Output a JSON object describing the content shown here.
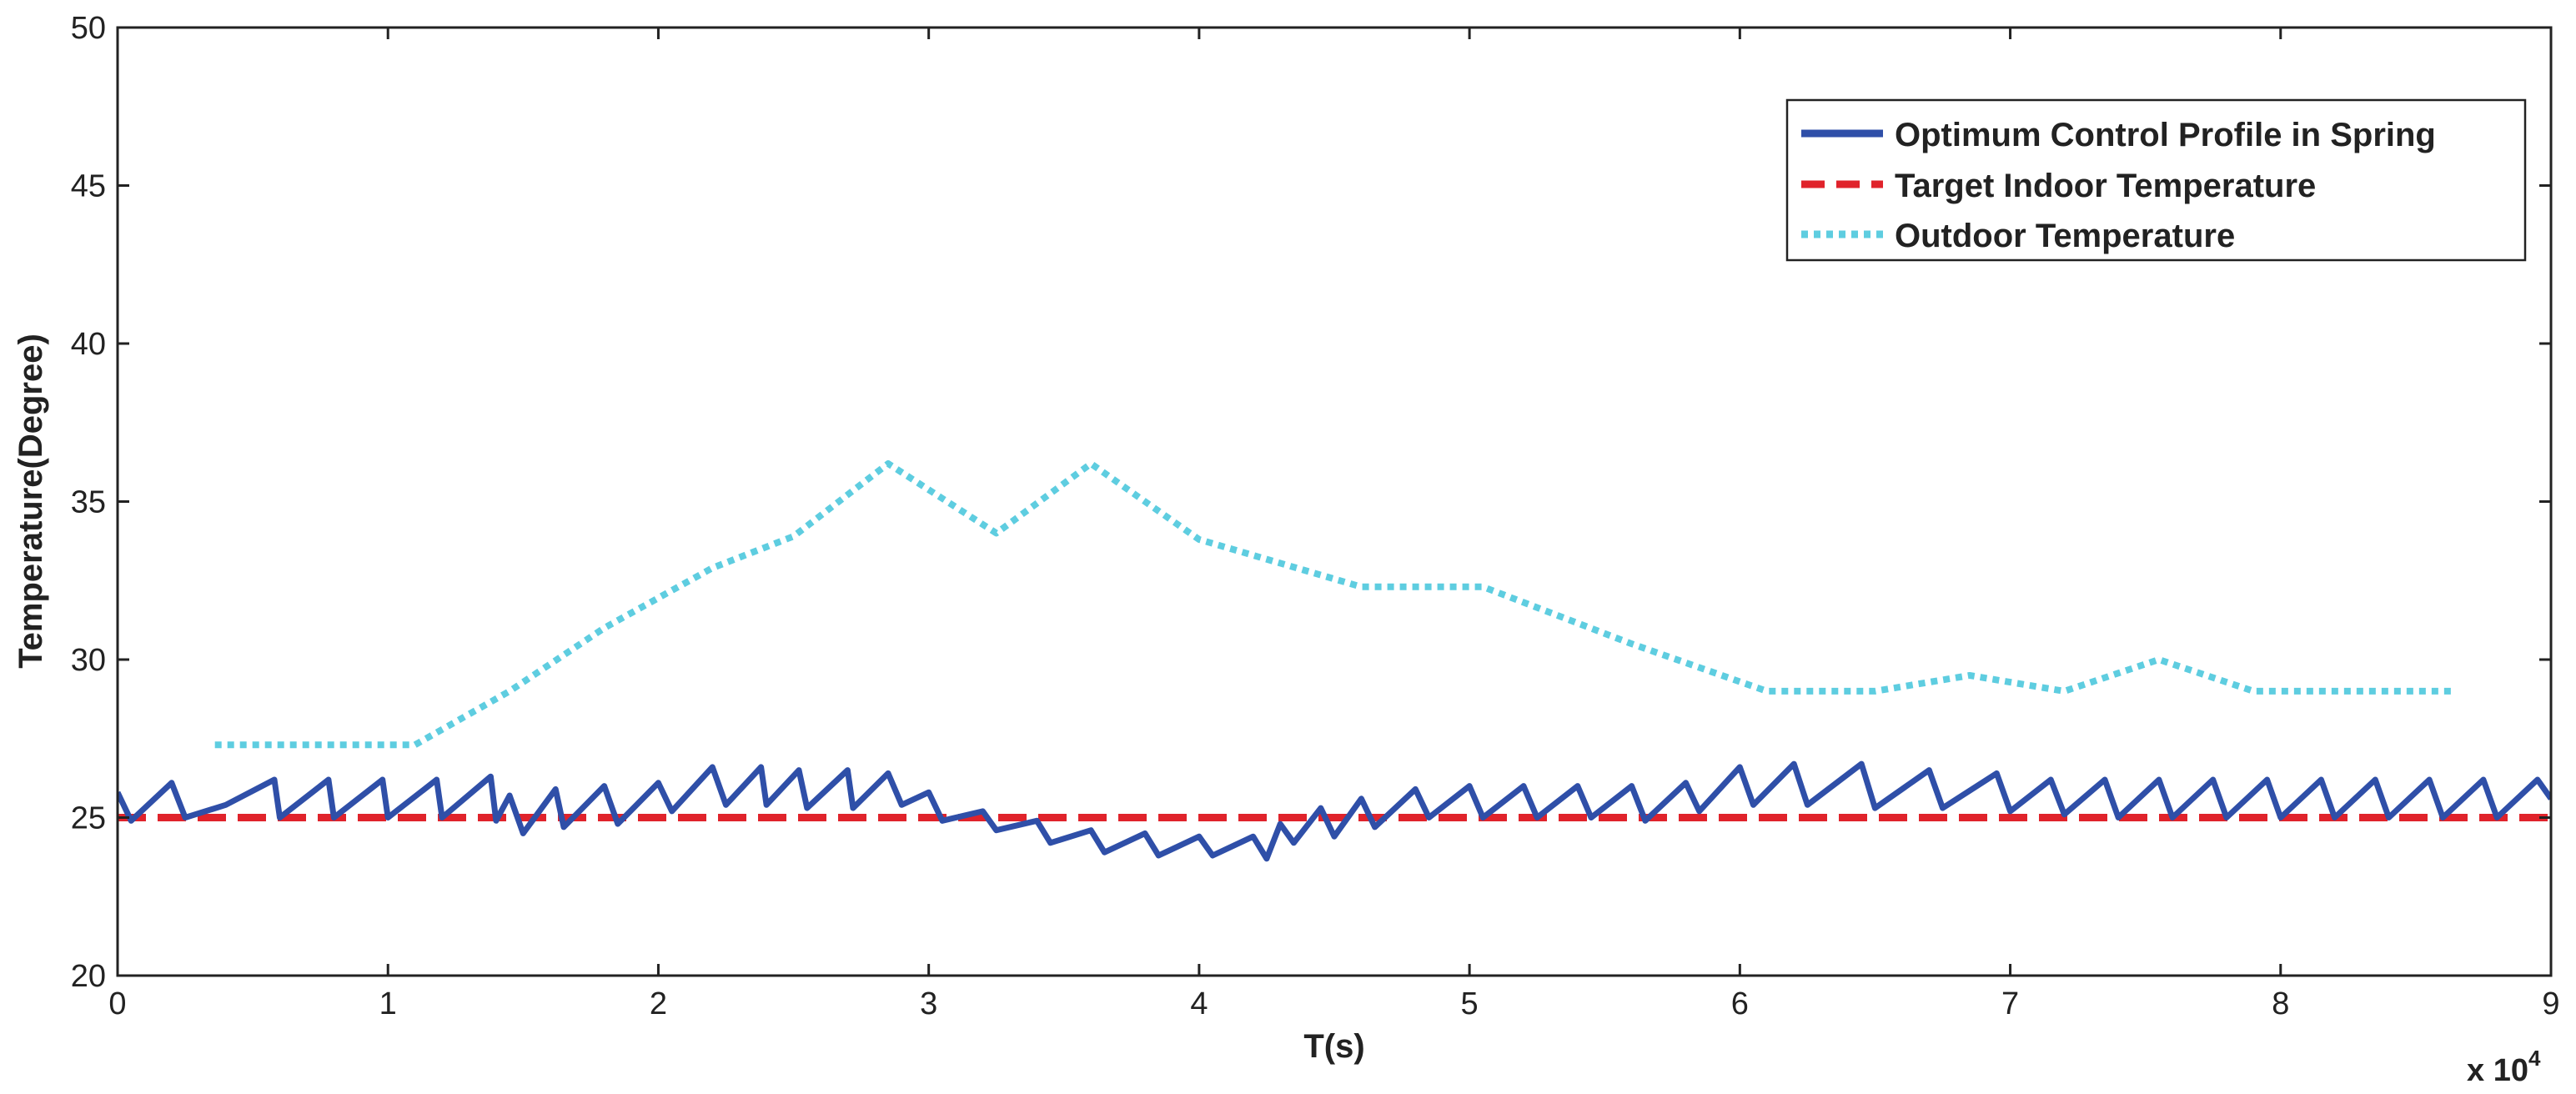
{
  "chart_data": {
    "type": "line",
    "title": "",
    "xlabel": "T(s)",
    "ylabel": "Temperature(Degree)",
    "x_multiplier_label": "x 10",
    "x_multiplier_exponent": "4",
    "xlim": [
      0,
      9
    ],
    "ylim": [
      20,
      50
    ],
    "xticks": [
      0,
      1,
      2,
      3,
      4,
      5,
      6,
      7,
      8,
      9
    ],
    "xtick_labels": [
      "0",
      "1",
      "2",
      "3",
      "4",
      "5",
      "6",
      "7",
      "8",
      "9"
    ],
    "yticks": [
      20,
      25,
      30,
      35,
      40,
      45,
      50
    ],
    "ytick_labels": [
      "20",
      "25",
      "30",
      "35",
      "40",
      "45",
      "50"
    ],
    "grid": false,
    "legend_position": "top-right",
    "series": [
      {
        "name": "Optimum Control Profile in Spring",
        "color": "#2f4fa8",
        "style": "solid",
        "note": "sawtooth oscillation sampled from envelope",
        "x": [
          0,
          0.05,
          0.2,
          0.25,
          0.4,
          0.58,
          0.6,
          0.78,
          0.8,
          0.98,
          1.0,
          1.18,
          1.2,
          1.38,
          1.4,
          1.45,
          1.5,
          1.62,
          1.65,
          1.8,
          1.85,
          2.0,
          2.05,
          2.2,
          2.25,
          2.38,
          2.4,
          2.52,
          2.55,
          2.7,
          2.72,
          2.85,
          2.9,
          3.0,
          3.05,
          3.2,
          3.25,
          3.4,
          3.45,
          3.6,
          3.65,
          3.8,
          3.85,
          4.0,
          4.05,
          4.2,
          4.25,
          4.3,
          4.35,
          4.45,
          4.5,
          4.6,
          4.65,
          4.8,
          4.85,
          5.0,
          5.05,
          5.2,
          5.25,
          5.4,
          5.45,
          5.6,
          5.65,
          5.8,
          5.85,
          6.0,
          6.05,
          6.2,
          6.25,
          6.45,
          6.5,
          6.7,
          6.75,
          6.95,
          7.0,
          7.15,
          7.2,
          7.35,
          7.4,
          7.55,
          7.6,
          7.75,
          7.8,
          7.95,
          8.0,
          8.15,
          8.2,
          8.35,
          8.4,
          8.55,
          8.6,
          8.75,
          8.8,
          8.95,
          9.0
        ],
        "values": [
          25.8,
          24.9,
          26.1,
          25.0,
          25.4,
          26.2,
          25.0,
          26.2,
          25.0,
          26.2,
          25.0,
          26.2,
          25.0,
          26.3,
          24.9,
          25.7,
          24.5,
          25.9,
          24.7,
          26.0,
          24.8,
          26.1,
          25.2,
          26.6,
          25.4,
          26.6,
          25.4,
          26.5,
          25.3,
          26.5,
          25.3,
          26.4,
          25.4,
          25.8,
          24.9,
          25.2,
          24.6,
          24.9,
          24.2,
          24.6,
          23.9,
          24.5,
          23.8,
          24.4,
          23.8,
          24.4,
          23.7,
          24.8,
          24.2,
          25.3,
          24.4,
          25.6,
          24.7,
          25.9,
          25.0,
          26.0,
          25.0,
          26.0,
          25.0,
          26.0,
          25.0,
          26.0,
          24.9,
          26.1,
          25.2,
          26.6,
          25.4,
          26.7,
          25.4,
          26.7,
          25.3,
          26.5,
          25.3,
          26.4,
          25.2,
          26.2,
          25.1,
          26.2,
          25.0,
          26.2,
          25.0,
          26.2,
          25.0,
          26.2,
          25.0,
          26.2,
          25.0,
          26.2,
          25.0,
          26.2,
          25.0,
          26.2,
          25.0,
          26.2,
          25.6
        ]
      },
      {
        "name": "Target Indoor Temperature",
        "color": "#e0232b",
        "style": "dashed",
        "x": [
          0,
          9
        ],
        "values": [
          25,
          25
        ]
      },
      {
        "name": "Outdoor Temperature",
        "color": "#5ecde0",
        "style": "dotted",
        "x": [
          0.36,
          1.1,
          1.45,
          1.8,
          2.2,
          2.5,
          2.85,
          3.25,
          3.6,
          4.0,
          4.6,
          5.05,
          5.6,
          6.1,
          6.5,
          6.85,
          7.2,
          7.55,
          7.9,
          8.65
        ],
        "values": [
          27.3,
          27.3,
          29.0,
          31.0,
          32.9,
          33.9,
          36.2,
          34.0,
          36.2,
          33.8,
          32.3,
          32.3,
          30.5,
          29.0,
          29.0,
          29.5,
          29.0,
          30.0,
          29.0,
          29.0
        ]
      }
    ]
  }
}
